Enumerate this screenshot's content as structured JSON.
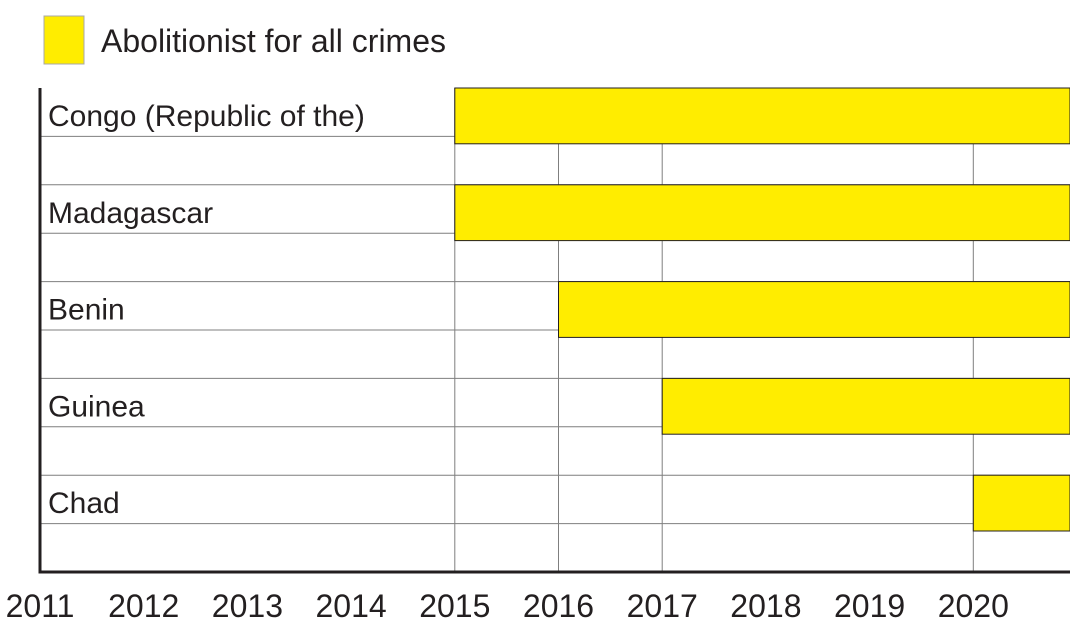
{
  "chart_data": {
    "type": "bar",
    "orientation": "horizontal",
    "title": "",
    "xlabel": "",
    "ylabel": "",
    "legend": {
      "placement": "top-left",
      "entries": [
        {
          "label": "Abolitionist for all crimes",
          "color": "#ffed00"
        }
      ]
    },
    "x_ticks": [
      "2011",
      "2012",
      "2013",
      "2014",
      "2015",
      "2016",
      "2017",
      "2018",
      "2019",
      "2020"
    ],
    "xlim": [
      2011,
      2021
    ],
    "grid": true,
    "categories": [
      "Congo (Republic of the)",
      "Madagascar",
      "Benin",
      "Guinea",
      "Chad"
    ],
    "series": [
      {
        "name": "Abolitionist for all crimes",
        "color": "#ffed00",
        "start": [
          2015,
          2015,
          2016,
          2017,
          2020
        ],
        "end": [
          2021,
          2021,
          2021,
          2021,
          2021
        ]
      }
    ]
  }
}
